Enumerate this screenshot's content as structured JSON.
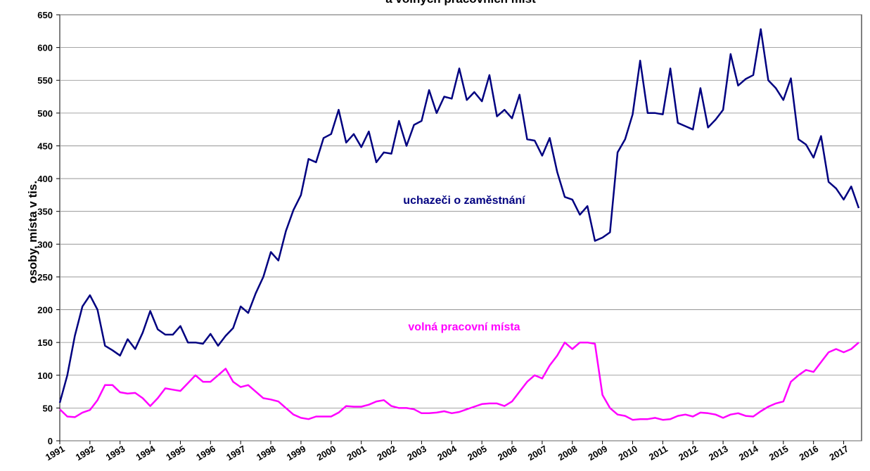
{
  "chart_data": {
    "type": "line",
    "title": "a volných pracovních míst",
    "ylabel": "osoby, místa v tis.",
    "categories": [
      "1991",
      null,
      null,
      null,
      "1992",
      null,
      null,
      null,
      "1993",
      null,
      null,
      null,
      "1994",
      null,
      null,
      null,
      "1995",
      null,
      null,
      null,
      "1996",
      null,
      null,
      null,
      "1997",
      null,
      null,
      null,
      "1998",
      null,
      null,
      null,
      "1999",
      null,
      null,
      null,
      "2000",
      null,
      null,
      null,
      "2001",
      null,
      null,
      null,
      "2002",
      null,
      null,
      null,
      "2003",
      null,
      null,
      null,
      "2004",
      null,
      null,
      null,
      "2005",
      null,
      null,
      null,
      "2006",
      null,
      null,
      null,
      "2007",
      null,
      null,
      null,
      "2008",
      null,
      null,
      null,
      "2009",
      null,
      null,
      null,
      "2010",
      null,
      null,
      null,
      "2011",
      null,
      null,
      null,
      "2012",
      null,
      null,
      null,
      "2013",
      null,
      null,
      null,
      "2014",
      null,
      null,
      null,
      "2015",
      null,
      null,
      null,
      "2016",
      null,
      null,
      null,
      "2017",
      null,
      null
    ],
    "series": [
      {
        "name": "uchazeči o zaměstnání",
        "color": "#000080",
        "values": [
          58,
          100,
          160,
          205,
          222,
          200,
          145,
          138,
          130,
          155,
          140,
          165,
          198,
          170,
          162,
          162,
          175,
          150,
          150,
          148,
          163,
          145,
          160,
          172,
          205,
          195,
          225,
          250,
          288,
          275,
          320,
          352,
          375,
          430,
          425,
          462,
          468,
          505,
          455,
          468,
          448,
          472,
          425,
          440,
          438,
          488,
          450,
          482,
          488,
          535,
          500,
          525,
          522,
          568,
          520,
          532,
          518,
          558,
          495,
          505,
          492,
          528,
          460,
          458,
          435,
          462,
          410,
          372,
          368,
          345,
          358,
          305,
          310,
          318,
          440,
          460,
          498,
          580,
          500,
          500,
          498,
          568,
          485,
          480,
          475,
          538,
          478,
          490,
          505,
          590,
          542,
          552,
          558,
          628,
          550,
          538,
          520,
          553,
          460,
          452,
          432,
          465,
          395,
          385,
          368,
          388,
          355
        ]
      },
      {
        "name": "volná pracovní místa",
        "color": "#ff00ff",
        "values": [
          48,
          37,
          36,
          43,
          47,
          62,
          85,
          85,
          74,
          72,
          73,
          65,
          53,
          65,
          80,
          78,
          76,
          88,
          100,
          90,
          90,
          100,
          110,
          90,
          82,
          85,
          75,
          65,
          63,
          60,
          50,
          40,
          35,
          33,
          37,
          37,
          37,
          43,
          53,
          52,
          52,
          55,
          60,
          62,
          53,
          50,
          50,
          48,
          42,
          42,
          43,
          45,
          42,
          44,
          48,
          52,
          56,
          57,
          57,
          53,
          60,
          75,
          90,
          100,
          95,
          115,
          130,
          150,
          140,
          150,
          150,
          148,
          70,
          50,
          40,
          38,
          32,
          33,
          33,
          35,
          32,
          33,
          38,
          40,
          37,
          43,
          42,
          40,
          35,
          40,
          42,
          38,
          37,
          45,
          52,
          57,
          60,
          90,
          100,
          108,
          105,
          120,
          135,
          140,
          135,
          140,
          150
        ]
      }
    ],
    "ylim": [
      0,
      650
    ],
    "yticks": [
      0,
      50,
      100,
      150,
      200,
      250,
      300,
      350,
      400,
      450,
      500,
      550,
      600,
      650
    ],
    "grid": true
  }
}
